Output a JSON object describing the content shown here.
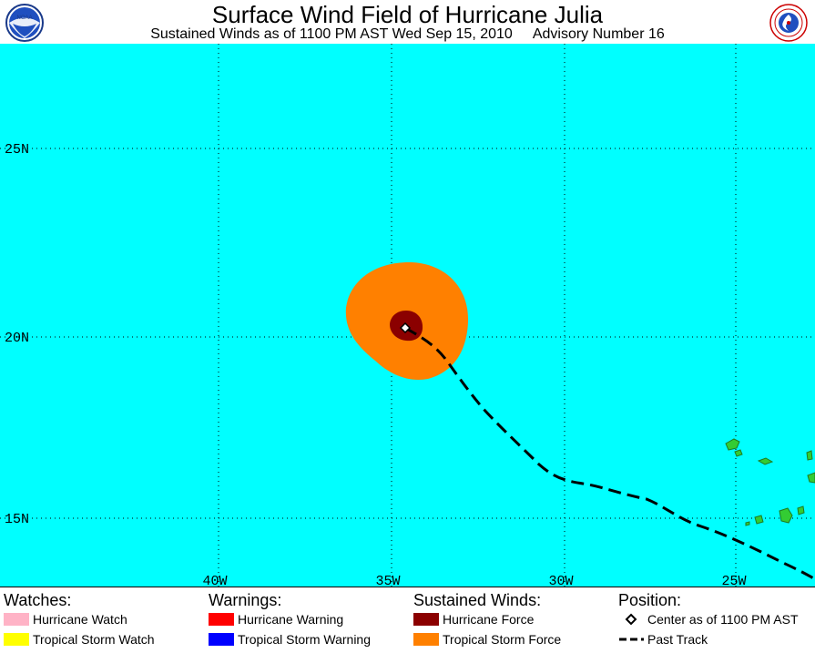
{
  "header": {
    "title": "Surface Wind Field of Hurricane Julia",
    "subtitle_left": "Sustained Winds as of 1100 PM AST Wed Sep 15, 2010",
    "subtitle_right": "Advisory Number 16",
    "left_logo": "noaa-logo",
    "right_logo": "nws-logo"
  },
  "map": {
    "ocean_color": "#00ffff",
    "land_color": "#33cc33",
    "lat_labels": [
      "25N",
      "20N",
      "15N"
    ],
    "lon_labels": [
      "40W",
      "35W",
      "30W",
      "25W"
    ],
    "lat_lines": [
      25,
      20,
      15
    ],
    "lon_lines": [
      40,
      35,
      30,
      25
    ],
    "storm_center": {
      "lat": 20.2,
      "lon": -34.5
    }
  },
  "legend": {
    "watches": {
      "heading": "Watches:",
      "items": [
        {
          "label": "Hurricane Watch",
          "color": "#ffb3c6"
        },
        {
          "label": "Tropical Storm Watch",
          "color": "#ffff00"
        }
      ]
    },
    "warnings": {
      "heading": "Warnings:",
      "items": [
        {
          "label": "Hurricane Warning",
          "color": "#ff0000"
        },
        {
          "label": "Tropical Storm Warning",
          "color": "#0000ff"
        }
      ]
    },
    "winds": {
      "heading": "Sustained Winds:",
      "items": [
        {
          "label": "Hurricane Force",
          "color": "#8b0000"
        },
        {
          "label": "Tropical Storm Force",
          "color": "#ff8000"
        }
      ]
    },
    "position": {
      "heading": "Position:",
      "items": [
        {
          "label": "Center as of 1100 PM AST",
          "icon": "diamond-icon"
        },
        {
          "label": "Past Track",
          "icon": "dashed-line-icon"
        }
      ]
    }
  }
}
